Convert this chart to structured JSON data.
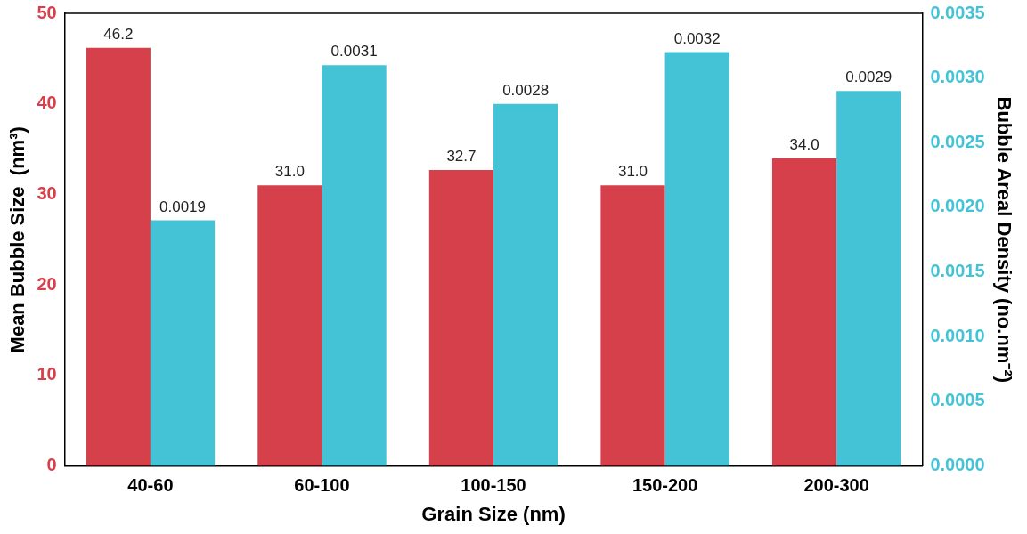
{
  "chart_data": {
    "type": "bar",
    "xlabel": "Grain Size (nm)",
    "ylabel": "Mean Bubble Size  (nm³)",
    "y2label": "Bubble Areal Density (no.nm⁻²)",
    "categories": [
      "40-60",
      "60-100",
      "100-150",
      "150-200",
      "200-300"
    ],
    "series": [
      {
        "color": "#d6404a",
        "values": [
          46.2,
          31.0,
          32.7,
          31.0,
          34.0
        ],
        "value_labels": [
          "46.2",
          "31.0",
          "32.7",
          "31.0",
          "34.0"
        ]
      },
      {
        "color": "#45c3d6",
        "axis": "y2",
        "values": [
          0.0019,
          0.0031,
          0.0028,
          0.0032,
          0.0029
        ],
        "value_labels": [
          "0.0019",
          "0.0031",
          "0.0028",
          "0.0032",
          "0.0029"
        ]
      }
    ],
    "ylim": [
      0,
      50
    ],
    "yticks": [
      0,
      10,
      20,
      30,
      40,
      50
    ],
    "y2lim": [
      0,
      0.0035
    ],
    "y2ticks": [
      {
        "value": 0,
        "label": "0.0000"
      },
      {
        "value": 0.0005,
        "label": "0.0005"
      },
      {
        "value": 0.001,
        "label": "0.0010"
      },
      {
        "value": 0.0015,
        "label": "0.0015"
      },
      {
        "value": 0.002,
        "label": "0.0020"
      },
      {
        "value": 0.0025,
        "label": "0.0025"
      },
      {
        "value": 0.003,
        "label": "0.0030"
      },
      {
        "value": 0.0035,
        "label": "0.0035"
      }
    ],
    "grid": false,
    "legend": false
  }
}
